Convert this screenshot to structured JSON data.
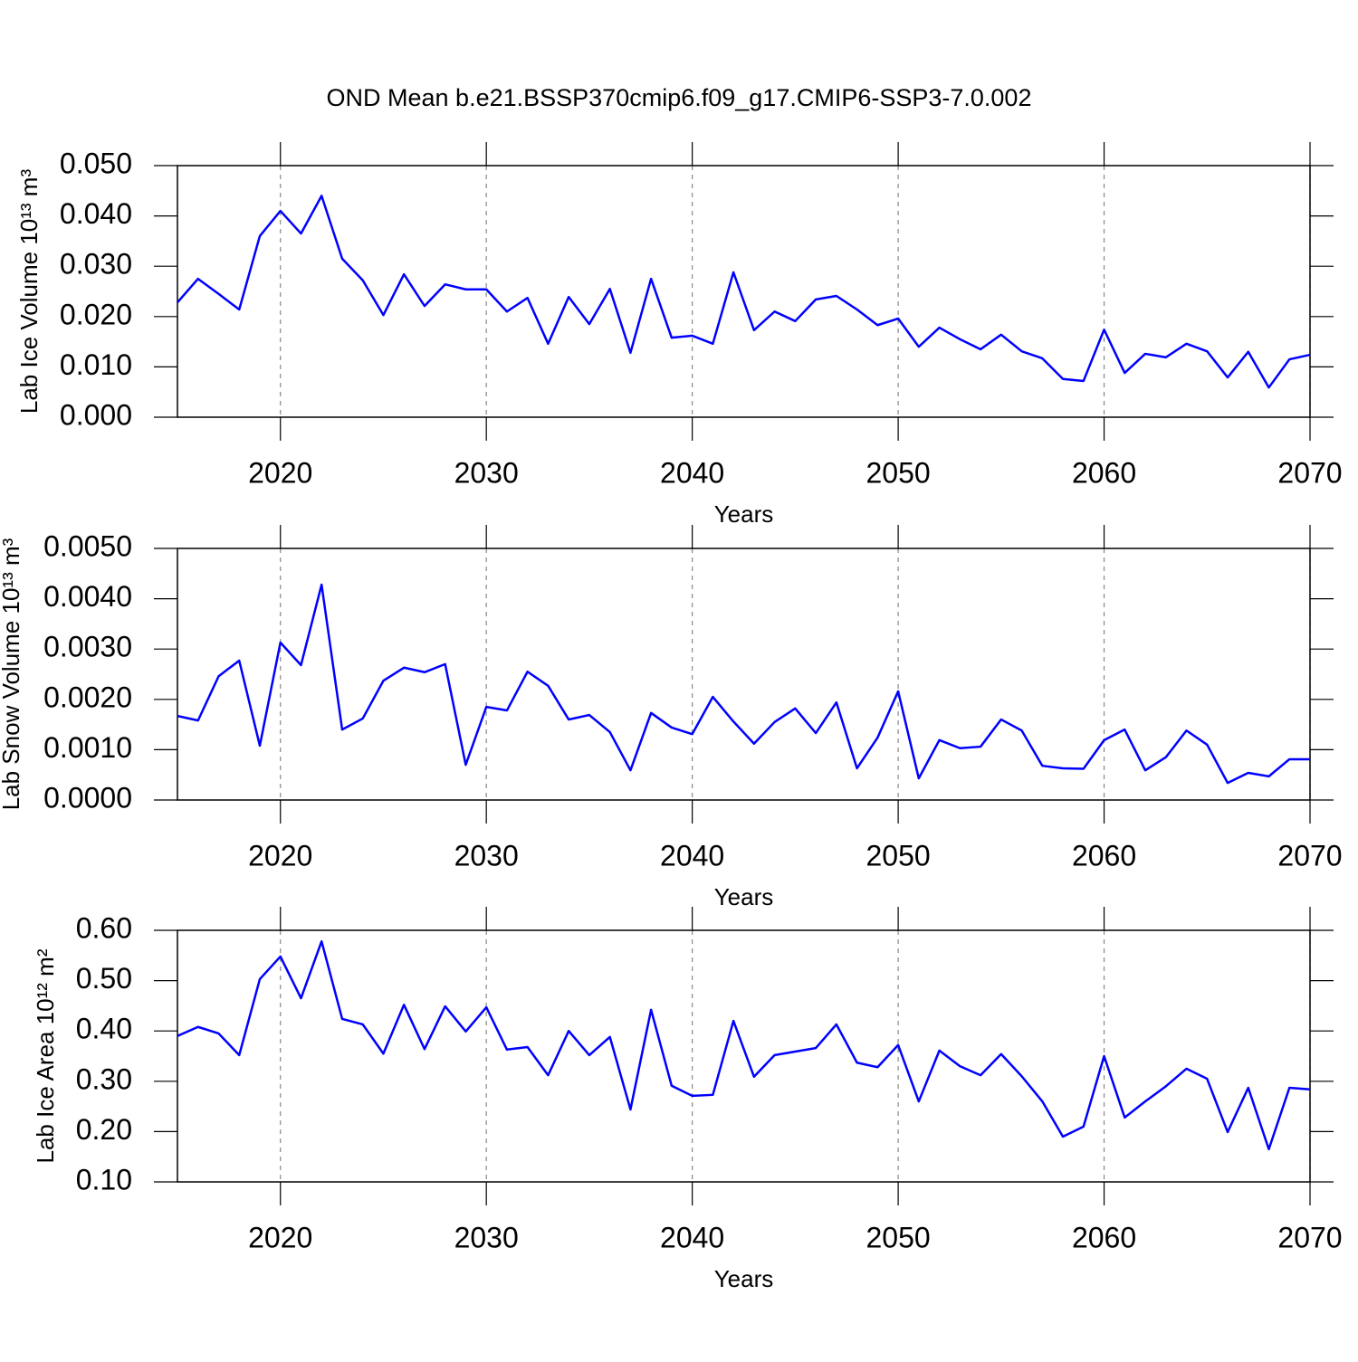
{
  "chart_data": [
    {
      "type": "line",
      "title": "OND Mean b.e21.BSSP370cmip6.f09_g17.CMIP6-SSP3-7.0.002",
      "xlabel": "Years",
      "ylabel": "Lab Ice Volume 10¹³ m³",
      "color": "#0000ff",
      "xgrid": true,
      "xlim": [
        2015,
        2070
      ],
      "xticks": [
        2020,
        2030,
        2040,
        2050,
        2060,
        2070
      ],
      "ylim": [
        0,
        0.05
      ],
      "yticks": [
        {
          "value": 0,
          "label": "0.000"
        },
        {
          "value": 0.01,
          "label": "0.010"
        },
        {
          "value": 0.02,
          "label": "0.020"
        },
        {
          "value": 0.03,
          "label": "0.030"
        },
        {
          "value": 0.04,
          "label": "0.040"
        },
        {
          "value": 0.05,
          "label": "0.050"
        }
      ],
      "x": [
        2015,
        2016,
        2017,
        2018,
        2019,
        2020,
        2021,
        2022,
        2023,
        2024,
        2025,
        2026,
        2027,
        2028,
        2029,
        2030,
        2031,
        2032,
        2033,
        2034,
        2035,
        2036,
        2037,
        2038,
        2039,
        2040,
        2041,
        2042,
        2043,
        2044,
        2045,
        2046,
        2047,
        2048,
        2049,
        2050,
        2051,
        2052,
        2053,
        2054,
        2055,
        2056,
        2057,
        2058,
        2059,
        2060,
        2061,
        2062,
        2063,
        2064,
        2065,
        2066,
        2067,
        2068,
        2069,
        2070
      ],
      "values": [
        0.0228,
        0.0275,
        0.0245,
        0.0214,
        0.036,
        0.041,
        0.0365,
        0.044,
        0.0315,
        0.0272,
        0.0203,
        0.0284,
        0.0221,
        0.0264,
        0.0254,
        0.0254,
        0.021,
        0.0237,
        0.0146,
        0.0239,
        0.0185,
        0.0255,
        0.0128,
        0.0275,
        0.0158,
        0.0162,
        0.0146,
        0.0288,
        0.0173,
        0.021,
        0.0191,
        0.0234,
        0.0241,
        0.0214,
        0.0183,
        0.0196,
        0.014,
        0.0178,
        0.0155,
        0.0135,
        0.0164,
        0.0131,
        0.0117,
        0.0076,
        0.0072,
        0.0174,
        0.0088,
        0.0126,
        0.0119,
        0.0146,
        0.0131,
        0.0079,
        0.013,
        0.0059,
        0.0115,
        0.0124
      ]
    },
    {
      "type": "line",
      "xlabel": "Years",
      "ylabel": "Lab Snow Volume 10¹³ m³",
      "color": "#0000ff",
      "xgrid": true,
      "xlim": [
        2015,
        2070
      ],
      "xticks": [
        2020,
        2030,
        2040,
        2050,
        2060,
        2070
      ],
      "ylim": [
        0,
        0.005
      ],
      "yticks": [
        {
          "value": 0,
          "label": "0.0000"
        },
        {
          "value": 0.001,
          "label": "0.0010"
        },
        {
          "value": 0.002,
          "label": "0.0020"
        },
        {
          "value": 0.003,
          "label": "0.0030"
        },
        {
          "value": 0.004,
          "label": "0.0040"
        },
        {
          "value": 0.005,
          "label": "0.0050"
        }
      ],
      "x": [
        2015,
        2016,
        2017,
        2018,
        2019,
        2020,
        2021,
        2022,
        2023,
        2024,
        2025,
        2026,
        2027,
        2028,
        2029,
        2030,
        2031,
        2032,
        2033,
        2034,
        2035,
        2036,
        2037,
        2038,
        2039,
        2040,
        2041,
        2042,
        2043,
        2044,
        2045,
        2046,
        2047,
        2048,
        2049,
        2050,
        2051,
        2052,
        2053,
        2054,
        2055,
        2056,
        2057,
        2058,
        2059,
        2060,
        2061,
        2062,
        2063,
        2064,
        2065,
        2066,
        2067,
        2068,
        2069,
        2070
      ],
      "values": [
        0.00167,
        0.00158,
        0.00246,
        0.00277,
        0.00108,
        0.00313,
        0.00268,
        0.00428,
        0.0014,
        0.00162,
        0.00237,
        0.00263,
        0.00254,
        0.0027,
        0.0007,
        0.00185,
        0.00178,
        0.00255,
        0.00227,
        0.0016,
        0.00169,
        0.00135,
        0.00059,
        0.00173,
        0.00144,
        0.00131,
        0.00205,
        0.00156,
        0.00112,
        0.00155,
        0.00182,
        0.00133,
        0.00194,
        0.00063,
        0.00124,
        0.00216,
        0.00043,
        0.00119,
        0.00103,
        0.00106,
        0.0016,
        0.00138,
        0.00068,
        0.00063,
        0.00062,
        0.00119,
        0.0014,
        0.00059,
        0.00085,
        0.00138,
        0.0011,
        0.00034,
        0.00054,
        0.00047,
        0.00081,
        0.00081
      ]
    },
    {
      "type": "line",
      "xlabel": "Years",
      "ylabel": "Lab Ice Area 10¹² m²",
      "color": "#0000ff",
      "xgrid": true,
      "xlim": [
        2015,
        2070
      ],
      "xticks": [
        2020,
        2030,
        2040,
        2050,
        2060,
        2070
      ],
      "ylim": [
        0.1,
        0.6
      ],
      "yticks": [
        {
          "value": 0.1,
          "label": "0.10"
        },
        {
          "value": 0.2,
          "label": "0.20"
        },
        {
          "value": 0.3,
          "label": "0.30"
        },
        {
          "value": 0.4,
          "label": "0.40"
        },
        {
          "value": 0.5,
          "label": "0.50"
        },
        {
          "value": 0.6,
          "label": "0.60"
        }
      ],
      "x": [
        2015,
        2016,
        2017,
        2018,
        2019,
        2020,
        2021,
        2022,
        2023,
        2024,
        2025,
        2026,
        2027,
        2028,
        2029,
        2030,
        2031,
        2032,
        2033,
        2034,
        2035,
        2036,
        2037,
        2038,
        2039,
        2040,
        2041,
        2042,
        2043,
        2044,
        2045,
        2046,
        2047,
        2048,
        2049,
        2050,
        2051,
        2052,
        2053,
        2054,
        2055,
        2056,
        2057,
        2058,
        2059,
        2060,
        2061,
        2062,
        2063,
        2064,
        2065,
        2066,
        2067,
        2068,
        2069,
        2070
      ],
      "values": [
        0.39,
        0.408,
        0.395,
        0.352,
        0.503,
        0.548,
        0.465,
        0.578,
        0.424,
        0.413,
        0.355,
        0.452,
        0.364,
        0.449,
        0.399,
        0.447,
        0.363,
        0.368,
        0.312,
        0.4,
        0.352,
        0.388,
        0.244,
        0.442,
        0.291,
        0.271,
        0.273,
        0.42,
        0.309,
        0.352,
        0.359,
        0.366,
        0.413,
        0.337,
        0.328,
        0.372,
        0.26,
        0.361,
        0.33,
        0.312,
        0.354,
        0.31,
        0.26,
        0.19,
        0.21,
        0.35,
        0.228,
        0.26,
        0.29,
        0.325,
        0.305,
        0.199,
        0.287,
        0.165,
        0.287,
        0.284
      ]
    }
  ]
}
